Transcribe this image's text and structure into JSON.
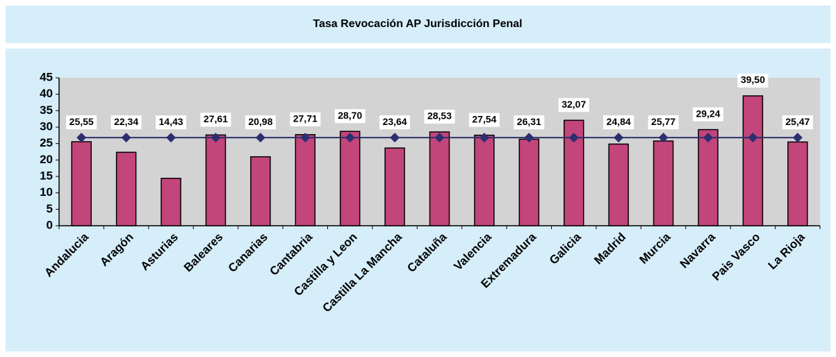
{
  "chart_data": {
    "type": "bar",
    "title": "Tasa Revocación AP Jurisdicción Penal",
    "categories": [
      "Andalucia",
      "Aragón",
      "Asturias",
      "Baleares",
      "Canarias",
      "Cantabria",
      "Castilla y Leon",
      "Castilla La Mancha",
      "Cataluña",
      "Valencia",
      "Extremadura",
      "Galicia",
      "Madrid",
      "Murcia",
      "Navarra",
      "Pais Vasco",
      "La Rioja"
    ],
    "series": [
      {
        "type": "bar",
        "color": "#c2457c",
        "values": [
          25.55,
          22.34,
          14.43,
          27.61,
          20.98,
          27.71,
          28.7,
          23.64,
          28.53,
          27.54,
          26.31,
          32.07,
          24.84,
          25.77,
          29.24,
          39.5,
          25.47
        ],
        "value_labels": [
          "25,55",
          "22,34",
          "14,43",
          "27,61",
          "20,98",
          "27,71",
          "28,70",
          "23,64",
          "28,53",
          "27,54",
          "26,31",
          "32,07",
          "24,84",
          "25,77",
          "29,24",
          "39,50",
          "25,47"
        ]
      },
      {
        "type": "line",
        "color": "#2b2f6e",
        "values": [
          26.8,
          26.8,
          26.8,
          26.8,
          26.8,
          26.8,
          26.8,
          26.8,
          26.8,
          26.8,
          26.8,
          26.8,
          26.8,
          26.8,
          26.8,
          26.8,
          26.8
        ]
      }
    ],
    "ylim": [
      0,
      45
    ],
    "yticks": [
      0,
      5,
      10,
      15,
      20,
      25,
      30,
      35,
      40,
      45
    ],
    "grid": false
  }
}
